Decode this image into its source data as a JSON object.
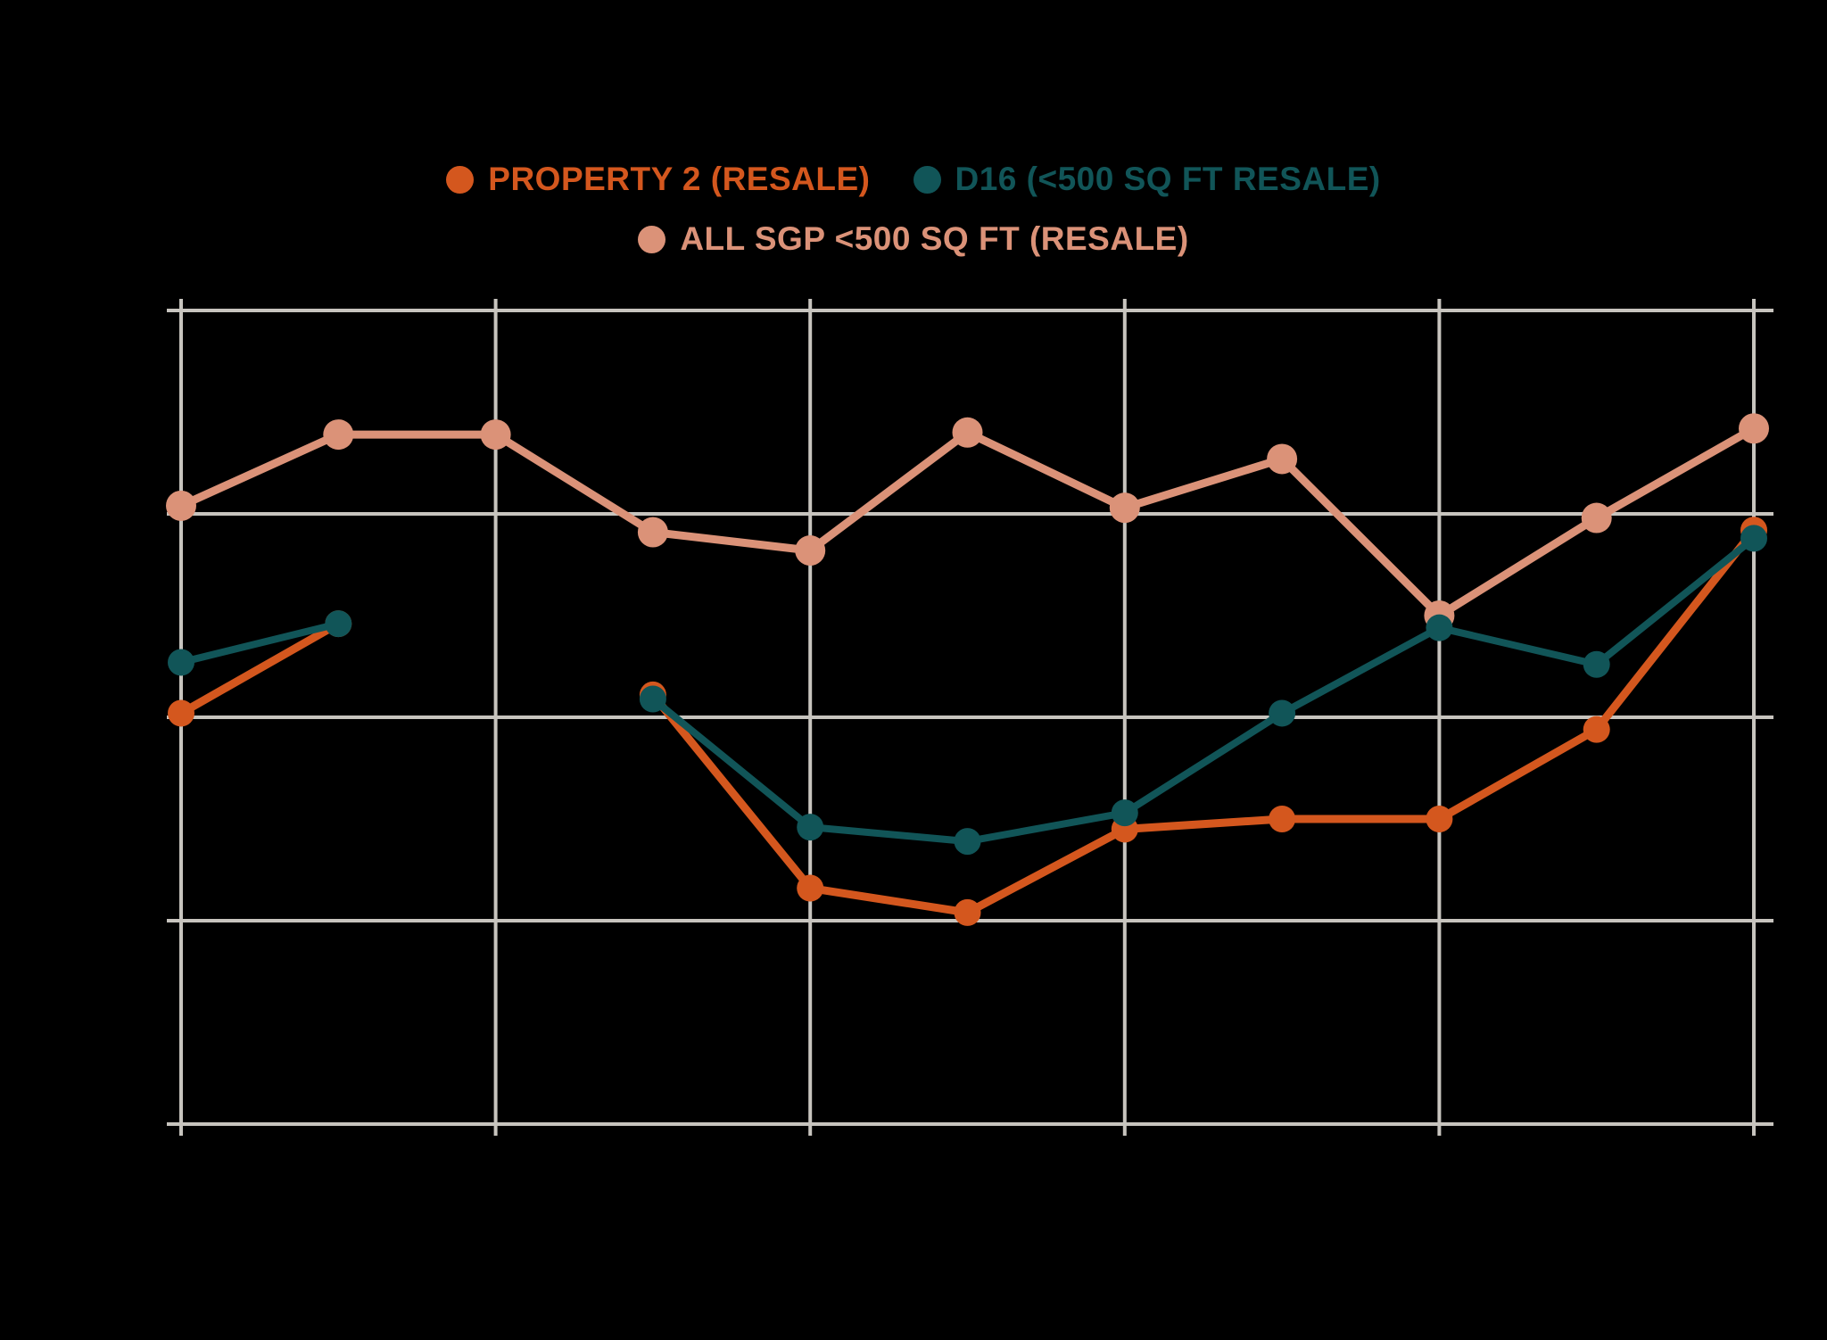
{
  "colors": {
    "background": "#000000",
    "gridline": "#c7c4be",
    "property2_orange": "#d4571e",
    "d16_teal": "#115558",
    "allsgp_salmon": "#db9278"
  },
  "legend": {
    "rows": [
      {
        "items": [
          {
            "label": "PROPERTY 2 (RESALE)",
            "series_key": "property2"
          },
          {
            "label": "D16 (<500 SQ FT RESALE)",
            "series_key": "d16"
          }
        ]
      },
      {
        "items": [
          {
            "label": "ALL SGP <500 SQ FT (RESALE)",
            "series_key": "allsgp"
          }
        ]
      }
    ]
  },
  "chart_data": {
    "type": "line",
    "title": "",
    "xlabel": "",
    "ylabel": "",
    "x_axis": {
      "tick_labels_visible": false,
      "num_points": 11,
      "gridline_every_n_points": 2
    },
    "y_axis": {
      "tick_labels_visible": false,
      "unit": "gridline-intervals (axis unlabeled in image)",
      "gridline_values": [
        0,
        1,
        2,
        3,
        4
      ]
    },
    "ylim": [
      0,
      4
    ],
    "grid": true,
    "legend_position": "top-center",
    "series": [
      {
        "name": "ALL SGP <500 SQ FT (RESALE)",
        "key": "allsgp",
        "color": "#db9278",
        "line_width": 9,
        "marker_radius": 17,
        "values": [
          3.04,
          3.39,
          3.39,
          2.91,
          2.82,
          3.4,
          3.03,
          3.27,
          2.5,
          2.98,
          3.42
        ]
      },
      {
        "name": "PROPERTY 2 (RESALE)",
        "key": "property2",
        "color": "#d4571e",
        "line_width": 9,
        "marker_radius": 15,
        "values": [
          2.02,
          2.46,
          null,
          2.11,
          1.16,
          1.04,
          1.45,
          1.5,
          1.5,
          1.94,
          2.92
        ]
      },
      {
        "name": "D16 (<500 SQ FT RESALE)",
        "key": "d16",
        "color": "#115558",
        "line_width": 8,
        "marker_radius": 15,
        "values": [
          2.27,
          2.46,
          null,
          2.09,
          1.46,
          1.39,
          1.53,
          2.02,
          2.44,
          2.26,
          2.88
        ]
      }
    ]
  }
}
